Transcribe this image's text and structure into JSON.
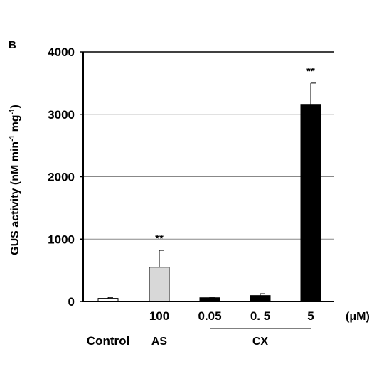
{
  "chart_data": {
    "type": "bar",
    "panel_label": "B",
    "ylabel": "GUS activity (nM min-1 mg-1)",
    "ylabel_parts": [
      "GUS activity (nM min",
      "-1",
      " mg",
      "-1",
      ")"
    ],
    "ylim": [
      0,
      4000
    ],
    "yticks": [
      "0",
      "1000",
      "2000",
      "3000",
      "4000"
    ],
    "grid": "horizontal",
    "unit_label": "(μM)",
    "categories": [
      "Control",
      "100",
      "0.05",
      "0. 5",
      "5"
    ],
    "values": [
      50,
      550,
      60,
      95,
      3160
    ],
    "errors": [
      15,
      270,
      10,
      30,
      340
    ],
    "fills": [
      "#ffffff",
      "#d8d8d8",
      "#000000",
      "#000000",
      "#000000"
    ],
    "significance": [
      "",
      "**",
      "",
      "",
      "**"
    ],
    "group_labels": [
      "AS",
      "CX"
    ]
  }
}
